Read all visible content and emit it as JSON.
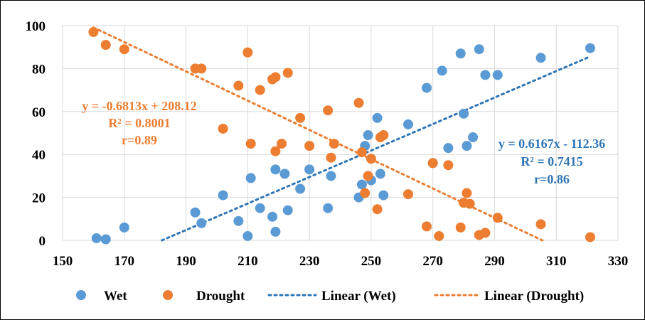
{
  "chart_data": {
    "type": "scatter",
    "xlim": [
      150,
      330
    ],
    "ylim": [
      0,
      100
    ],
    "x_ticks": [
      150,
      170,
      190,
      210,
      230,
      250,
      270,
      290,
      310,
      330
    ],
    "y_ticks": [
      0,
      20,
      40,
      60,
      80,
      100
    ],
    "grid": true,
    "legend_position": "bottom",
    "series": [
      {
        "name": "Wet",
        "color": "#5B9BD5",
        "points": [
          [
            161,
            1
          ],
          [
            164,
            0.5
          ],
          [
            170,
            6
          ],
          [
            193,
            13
          ],
          [
            195,
            8
          ],
          [
            202,
            21
          ],
          [
            207,
            9
          ],
          [
            210,
            2
          ],
          [
            211,
            29
          ],
          [
            214,
            15
          ],
          [
            218,
            11
          ],
          [
            219,
            4
          ],
          [
            219,
            33
          ],
          [
            222,
            31
          ],
          [
            223,
            14
          ],
          [
            227,
            24
          ],
          [
            230,
            33
          ],
          [
            236,
            15
          ],
          [
            237,
            30
          ],
          [
            246,
            20
          ],
          [
            247,
            26
          ],
          [
            248,
            44
          ],
          [
            249,
            49
          ],
          [
            250,
            28
          ],
          [
            252,
            57
          ],
          [
            253,
            31
          ],
          [
            254,
            21
          ],
          [
            262,
            54
          ],
          [
            268,
            71
          ],
          [
            270,
            36
          ],
          [
            273,
            79
          ],
          [
            275,
            43
          ],
          [
            279,
            87
          ],
          [
            280,
            59
          ],
          [
            281,
            44
          ],
          [
            283,
            48
          ],
          [
            285,
            89
          ],
          [
            287,
            77
          ],
          [
            291,
            77
          ],
          [
            305,
            85
          ],
          [
            321,
            89.5
          ]
        ]
      },
      {
        "name": "Drought",
        "color": "#ED7D31",
        "points": [
          [
            160,
            97
          ],
          [
            164,
            91
          ],
          [
            170,
            89
          ],
          [
            193,
            80
          ],
          [
            195,
            80
          ],
          [
            202,
            52
          ],
          [
            207,
            72
          ],
          [
            210,
            87.5
          ],
          [
            211,
            45
          ],
          [
            214,
            70
          ],
          [
            218,
            75
          ],
          [
            219,
            76
          ],
          [
            219,
            41.5
          ],
          [
            221,
            45
          ],
          [
            223,
            78
          ],
          [
            227,
            57
          ],
          [
            230,
            44
          ],
          [
            236,
            60.5
          ],
          [
            237,
            38.5
          ],
          [
            238,
            45
          ],
          [
            246,
            64
          ],
          [
            247,
            41
          ],
          [
            248,
            22
          ],
          [
            249,
            30
          ],
          [
            250,
            38
          ],
          [
            252,
            14.5
          ],
          [
            253,
            48
          ],
          [
            254,
            49
          ],
          [
            262,
            21.5
          ],
          [
            268,
            6.5
          ],
          [
            270,
            36
          ],
          [
            272,
            2
          ],
          [
            275,
            35
          ],
          [
            279,
            6
          ],
          [
            280,
            17.5
          ],
          [
            281,
            22
          ],
          [
            282,
            17
          ],
          [
            285,
            2.5
          ],
          [
            287,
            3.5
          ],
          [
            291,
            10.5
          ],
          [
            305,
            7.5
          ],
          [
            321,
            1.5
          ]
        ]
      }
    ],
    "trendlines": [
      {
        "name": "Linear (Wet)",
        "color": "#2E75B6",
        "slope": 0.6167,
        "intercept": -112.36,
        "x_range": [
          182.2,
          321
        ],
        "label_lines": [
          "y = 0.6167x - 112.36",
          "R² = 0.7415",
          "r=0.86"
        ]
      },
      {
        "name": "Linear (Drought)",
        "color": "#ED7D31",
        "slope": -0.6813,
        "intercept": 208.12,
        "x_range": [
          160,
          305.5
        ],
        "label_lines": [
          "y = -0.6813x + 208.12",
          "R² = 0.8001",
          "r=0.89"
        ]
      }
    ]
  },
  "legend": {
    "wet": "Wet",
    "drought": "Drought",
    "linear_wet": "Linear (Wet)",
    "linear_drought": "Linear (Drought)"
  }
}
